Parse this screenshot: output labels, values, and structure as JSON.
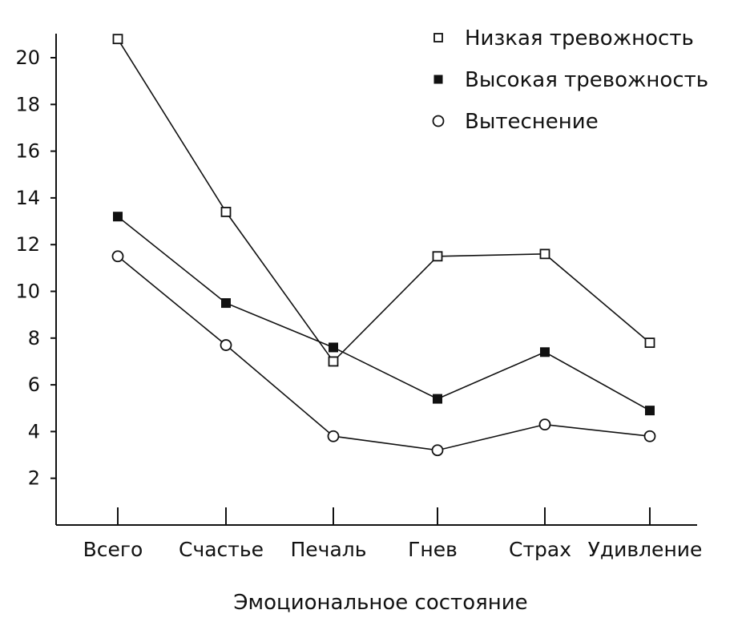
{
  "chart_data": {
    "type": "line",
    "title": "",
    "xlabel": "Эмоциональное состояние",
    "ylabel": "",
    "categories": [
      "Всего",
      "Счастье",
      "Печаль",
      "Гнев",
      "Страх",
      "Удивление"
    ],
    "ylim": [
      0,
      21
    ],
    "yticks": [
      2,
      4,
      6,
      8,
      10,
      12,
      14,
      16,
      18,
      20
    ],
    "grid": false,
    "legend_position": "top-right",
    "series": [
      {
        "name": "Низкая тревожность",
        "marker": "open-square",
        "values": [
          20.8,
          13.4,
          7.0,
          11.5,
          11.6,
          7.8
        ]
      },
      {
        "name": "Высокая тревожность",
        "marker": "filled-square",
        "values": [
          13.2,
          9.5,
          7.6,
          5.4,
          7.4,
          4.9
        ]
      },
      {
        "name": "Вытеснение",
        "marker": "open-circle",
        "values": [
          11.5,
          7.7,
          3.8,
          3.2,
          4.3,
          3.8
        ]
      }
    ],
    "colors": {
      "ink": "#111111",
      "background": "#ffffff"
    }
  }
}
